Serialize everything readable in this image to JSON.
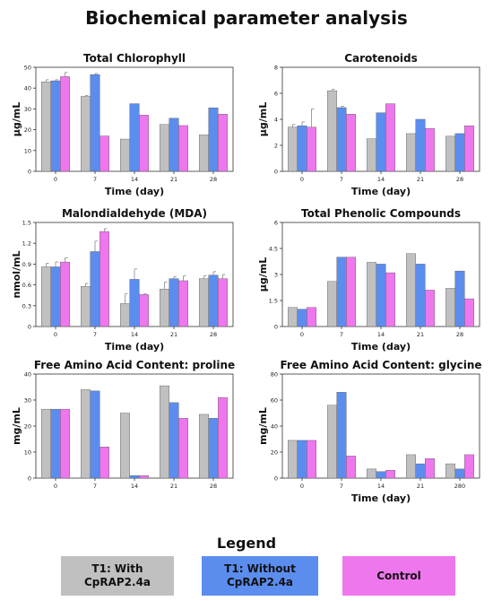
{
  "title": "Biochemical parameter analysis",
  "colors": {
    "t1_with": "#c0c0c0",
    "t1_without": "#5b8dee",
    "control": "#ee77ee"
  },
  "legend": {
    "title": "Legend",
    "items": [
      {
        "label": "T1: With CpRAP2.4a",
        "color": "#c0c0c0"
      },
      {
        "label": "T1: Without CpRAP2.4a",
        "color": "#5b8dee"
      },
      {
        "label": "Control",
        "color": "#ee77ee"
      }
    ]
  },
  "chart_data": [
    {
      "type": "bar",
      "title": "Total Chlorophyll",
      "xlabel": "Time (day)",
      "ylabel": "μg/mL",
      "categories": [
        "0",
        "7",
        "14",
        "21",
        "28"
      ],
      "ylim": [
        0,
        50
      ],
      "yticks": [
        "0",
        "10",
        "20",
        "30",
        "40",
        "50"
      ],
      "series": [
        {
          "values": [
            43,
            36,
            15.5,
            22.5,
            17.5
          ],
          "errors": [
            1,
            0.5,
            0,
            0,
            0
          ]
        },
        {
          "values": [
            43.5,
            46.5,
            32.5,
            25.5,
            30.5
          ],
          "errors": [
            0.5,
            0.5,
            0,
            0,
            0
          ]
        },
        {
          "values": [
            45.5,
            17,
            27,
            22,
            27.5
          ],
          "errors": [
            2,
            0,
            0,
            0,
            0
          ]
        }
      ]
    },
    {
      "type": "bar",
      "title": "Carotenoids",
      "xlabel": "Time (day)",
      "ylabel": "μg/mL",
      "categories": [
        "0",
        "7",
        "14",
        "21",
        "28"
      ],
      "ylim": [
        0,
        8
      ],
      "yticks": [
        "0",
        "2",
        "4",
        "6",
        "8"
      ],
      "series": [
        {
          "values": [
            3.4,
            6.2,
            2.5,
            2.9,
            2.7
          ],
          "errors": [
            0.2,
            0.1,
            0,
            0,
            0
          ]
        },
        {
          "values": [
            3.5,
            4.9,
            4.5,
            4.0,
            2.9
          ],
          "errors": [
            0.3,
            0.1,
            0,
            0,
            0
          ]
        },
        {
          "values": [
            3.4,
            4.4,
            5.2,
            3.3,
            3.5
          ],
          "errors": [
            1.4,
            0,
            0,
            0,
            0
          ]
        }
      ]
    },
    {
      "type": "bar",
      "title": "Malondialdehyde (MDA)",
      "xlabel": "Time (day)",
      "ylabel": "nmol/mL",
      "categories": [
        "0",
        "7",
        "14",
        "21",
        "28"
      ],
      "ylim": [
        0,
        1.5
      ],
      "yticks": [
        "0",
        "0.3",
        "0.6",
        "0.9",
        "1.2",
        "1.5"
      ],
      "series": [
        {
          "values": [
            0.86,
            0.58,
            0.33,
            0.54,
            0.69
          ],
          "errors": [
            0.05,
            0.04,
            0.14,
            0.1,
            0.04
          ]
        },
        {
          "values": [
            0.86,
            1.08,
            0.68,
            0.69,
            0.74
          ],
          "errors": [
            0.07,
            0.15,
            0.15,
            0.03,
            0.05
          ]
        },
        {
          "values": [
            0.93,
            1.37,
            0.46,
            0.66,
            0.69
          ],
          "errors": [
            0.06,
            0.04,
            0.01,
            0.07,
            0.06
          ]
        }
      ]
    },
    {
      "type": "bar",
      "title": "Total Phenolic Compounds",
      "xlabel": "Time (day)",
      "ylabel": "μg/mL",
      "categories": [
        "0",
        "7",
        "14",
        "21",
        "28"
      ],
      "ylim": [
        0,
        6
      ],
      "yticks": [
        "0",
        "1.5",
        "3",
        "4.5",
        "6"
      ],
      "series": [
        {
          "values": [
            1.1,
            2.6,
            3.7,
            4.2,
            2.2
          ],
          "errors": [
            0,
            0,
            0,
            0,
            0
          ]
        },
        {
          "values": [
            1.0,
            4.0,
            3.6,
            3.6,
            3.2
          ],
          "errors": [
            0,
            0,
            0,
            0,
            0
          ]
        },
        {
          "values": [
            1.1,
            4.0,
            3.1,
            2.1,
            1.6
          ],
          "errors": [
            0,
            0,
            0,
            0,
            0
          ]
        }
      ]
    },
    {
      "type": "bar",
      "title": "Free Amino Acid Content: proline",
      "xlabel": "",
      "ylabel": "mg/mL",
      "categories": [
        "0",
        "7",
        "14",
        "21",
        "28"
      ],
      "ylim": [
        0,
        40
      ],
      "yticks": [
        "0",
        "10",
        "20",
        "30",
        "40"
      ],
      "series": [
        {
          "values": [
            26.5,
            34,
            25,
            35.5,
            24.5
          ],
          "errors": [
            0,
            0,
            0,
            0,
            0
          ]
        },
        {
          "values": [
            26.5,
            33.5,
            1,
            29,
            23
          ],
          "errors": [
            0,
            0,
            0,
            0,
            0
          ]
        },
        {
          "values": [
            26.5,
            12,
            1,
            23,
            31
          ],
          "errors": [
            0,
            0,
            0,
            0,
            0
          ]
        }
      ]
    },
    {
      "type": "bar",
      "title": "Free Amino Acid Content: glycine",
      "xlabel": "Time (day)",
      "ylabel": "mg/mL",
      "categories": [
        "0",
        "7",
        "14",
        "21",
        "280"
      ],
      "ylim": [
        0,
        80
      ],
      "yticks": [
        "0",
        "20",
        "40",
        "60",
        "80"
      ],
      "series": [
        {
          "values": [
            29,
            56,
            7,
            18,
            11
          ],
          "errors": [
            0,
            0,
            0,
            0,
            0
          ]
        },
        {
          "values": [
            29,
            66,
            5,
            11,
            7
          ],
          "errors": [
            0,
            0,
            0,
            0,
            0
          ]
        },
        {
          "values": [
            29,
            17,
            6,
            15,
            18
          ],
          "errors": [
            0,
            0,
            0,
            0,
            0
          ]
        }
      ]
    }
  ]
}
